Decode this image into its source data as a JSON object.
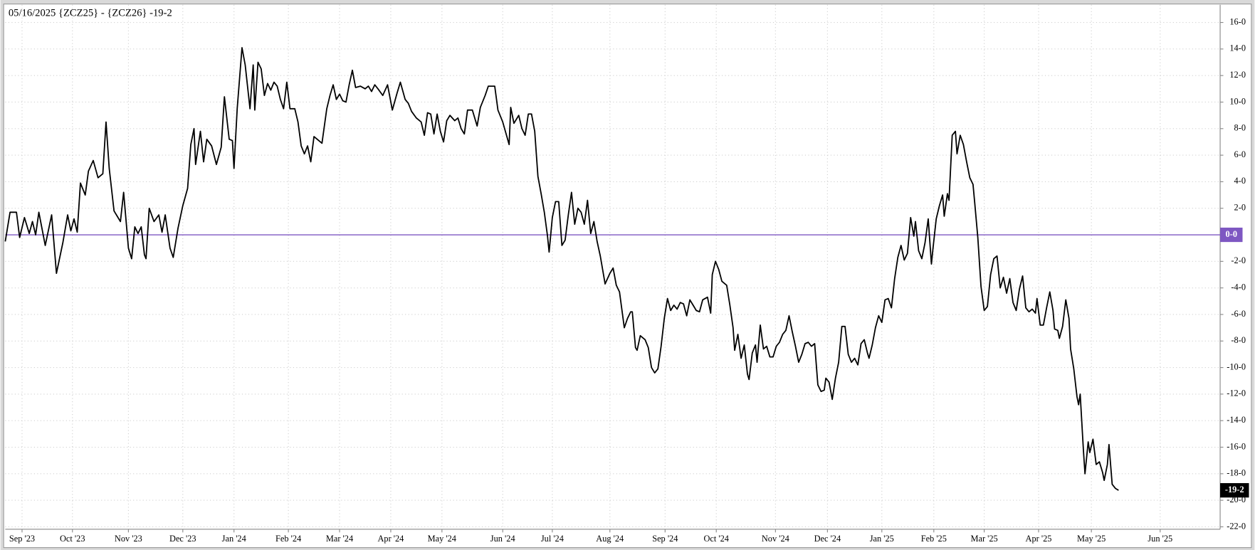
{
  "chart_data": {
    "type": "line",
    "title": "05/16/2025 {ZCZ25} - {ZCZ26} -19-2",
    "color": "#000000",
    "grid": true,
    "xlim": [
      6,
      1525
    ],
    "ylim": [
      -22.18,
      17.33
    ],
    "xticks": [
      {
        "value": 27,
        "label": "Sep '23"
      },
      {
        "value": 90,
        "label": "Oct '23"
      },
      {
        "value": 160,
        "label": "Nov '23"
      },
      {
        "value": 228,
        "label": "Dec '23"
      },
      {
        "value": 292,
        "label": "Jan '24"
      },
      {
        "value": 360,
        "label": "Feb '24"
      },
      {
        "value": 424,
        "label": "Mar '24"
      },
      {
        "value": 488,
        "label": "Apr '24"
      },
      {
        "value": 552,
        "label": "May '24"
      },
      {
        "value": 628,
        "label": "Jun '24"
      },
      {
        "value": 690,
        "label": "Jul '24"
      },
      {
        "value": 762,
        "label": "Aug '24"
      },
      {
        "value": 831,
        "label": "Sep '24"
      },
      {
        "value": 895,
        "label": "Oct '24"
      },
      {
        "value": 969,
        "label": "Nov '24"
      },
      {
        "value": 1034,
        "label": "Dec '24"
      },
      {
        "value": 1102,
        "label": "Jan '25"
      },
      {
        "value": 1167,
        "label": "Feb '25"
      },
      {
        "value": 1230,
        "label": "Mar '25"
      },
      {
        "value": 1298,
        "label": "Apr '25"
      },
      {
        "value": 1364,
        "label": "May '25"
      },
      {
        "value": 1450,
        "label": "Jun '25"
      }
    ],
    "yticks": [
      {
        "value": 16,
        "label": "16-0"
      },
      {
        "value": 14,
        "label": "14-0"
      },
      {
        "value": 12,
        "label": "12-0"
      },
      {
        "value": 10,
        "label": "10-0"
      },
      {
        "value": 8,
        "label": "8-0"
      },
      {
        "value": 6,
        "label": "6-0"
      },
      {
        "value": 4,
        "label": "4-0"
      },
      {
        "value": 2,
        "label": "2-0"
      },
      {
        "value": -2,
        "label": "-2-0"
      },
      {
        "value": -4,
        "label": "-4-0"
      },
      {
        "value": -6,
        "label": "-6-0"
      },
      {
        "value": -8,
        "label": "-8-0"
      },
      {
        "value": -10,
        "label": "-10-0"
      },
      {
        "value": -12,
        "label": "-12-0"
      },
      {
        "value": -14,
        "label": "-14-0"
      },
      {
        "value": -16,
        "label": "-16-0"
      },
      {
        "value": -18,
        "label": "-18-0"
      },
      {
        "value": -20,
        "label": "-20-0"
      },
      {
        "value": -22,
        "label": "-22-0"
      }
    ],
    "zero_line": {
      "value": 0,
      "label": "0-0",
      "color": "#7e57c2"
    },
    "last_value": {
      "value": -19.25,
      "label": "-19-2"
    },
    "x": [
      6,
      12,
      20,
      24,
      30,
      36,
      40,
      44,
      48,
      56,
      64,
      70,
      78,
      84,
      88,
      92,
      96,
      100,
      106,
      110,
      116,
      122,
      128,
      132,
      136,
      142,
      150,
      154,
      160,
      164,
      168,
      172,
      176,
      180,
      182,
      186,
      192,
      198,
      202,
      206,
      212,
      216,
      222,
      228,
      234,
      238,
      242,
      244,
      250,
      254,
      258,
      264,
      270,
      276,
      280,
      286,
      290,
      292,
      296,
      302,
      306,
      312,
      316,
      318,
      322,
      326,
      330,
      334,
      338,
      342,
      346,
      350,
      354,
      358,
      362,
      368,
      372,
      376,
      380,
      384,
      388,
      392,
      396,
      402,
      408,
      412,
      416,
      420,
      424,
      428,
      432,
      436,
      440,
      444,
      450,
      456,
      460,
      464,
      468,
      472,
      478,
      484,
      490,
      496,
      500,
      506,
      510,
      514,
      520,
      526,
      530,
      534,
      538,
      542,
      546,
      550,
      554,
      558,
      562,
      568,
      572,
      576,
      580,
      584,
      590,
      596,
      600,
      606,
      610,
      618,
      622,
      628,
      636,
      638,
      642,
      648,
      652,
      656,
      660,
      664,
      668,
      672,
      676,
      680,
      684,
      686,
      690,
      694,
      698,
      702,
      706,
      710,
      714,
      718,
      722,
      726,
      730,
      734,
      738,
      742,
      746,
      750,
      756,
      762,
      766,
      770,
      774,
      780,
      784,
      788,
      790,
      794,
      796,
      800,
      806,
      810,
      814,
      818,
      822,
      826,
      830,
      834,
      838,
      842,
      846,
      850,
      854,
      858,
      862,
      866,
      870,
      874,
      878,
      884,
      888,
      890,
      894,
      898,
      902,
      908,
      912,
      916,
      918,
      922,
      926,
      930,
      934,
      936,
      940,
      944,
      946,
      950,
      954,
      958,
      962,
      966,
      970,
      974,
      978,
      982,
      986,
      990,
      994,
      998,
      1002,
      1006,
      1010,
      1014,
      1018,
      1022,
      1026,
      1030,
      1032,
      1036,
      1040,
      1044,
      1048,
      1052,
      1056,
      1060,
      1064,
      1068,
      1072,
      1076,
      1080,
      1084,
      1086,
      1090,
      1094,
      1098,
      1102,
      1106,
      1110,
      1114,
      1118,
      1122,
      1126,
      1130,
      1134,
      1138,
      1142,
      1144,
      1148,
      1152,
      1156,
      1160,
      1164,
      1166,
      1170,
      1174,
      1178,
      1180,
      1184,
      1186,
      1190,
      1194,
      1196,
      1200,
      1204,
      1208,
      1212,
      1216,
      1218,
      1222,
      1226,
      1230,
      1234,
      1238,
      1242,
      1246,
      1250,
      1254,
      1258,
      1262,
      1266,
      1270,
      1274,
      1278,
      1282,
      1286,
      1290,
      1294,
      1296,
      1300,
      1304,
      1308,
      1312,
      1316,
      1318,
      1322,
      1324,
      1328,
      1332,
      1336,
      1338,
      1342,
      1346,
      1348,
      1350,
      1354,
      1356,
      1360,
      1362,
      1366,
      1370,
      1374,
      1378,
      1380,
      1384,
      1386,
      1390,
      1394,
      1398
    ],
    "values": [
      -0.5,
      1.7,
      1.7,
      -0.2,
      1.3,
      0.1,
      1.0,
      0.0,
      1.7,
      -0.8,
      1.5,
      -2.9,
      -0.6,
      1.5,
      0.3,
      1.2,
      0.2,
      3.9,
      3.0,
      4.8,
      5.6,
      4.3,
      4.6,
      8.5,
      5.0,
      1.8,
      1.0,
      3.2,
      -1.0,
      -1.8,
      0.6,
      0.1,
      0.6,
      -1.5,
      -1.8,
      2.0,
      1.0,
      1.5,
      0.2,
      1.5,
      -1.0,
      -1.7,
      0.5,
      2.2,
      3.5,
      6.8,
      8.0,
      5.3,
      7.8,
      5.5,
      7.2,
      6.7,
      5.3,
      6.6,
      10.4,
      7.2,
      7.1,
      5.0,
      9.5,
      14.1,
      12.8,
      9.5,
      12.8,
      9.4,
      13.0,
      12.5,
      10.5,
      11.4,
      10.9,
      11.5,
      11.2,
      10.2,
      9.5,
      11.5,
      9.5,
      9.5,
      8.5,
      6.7,
      6.1,
      6.7,
      5.5,
      7.4,
      7.2,
      6.9,
      9.5,
      10.5,
      11.3,
      10.2,
      10.6,
      10.1,
      10.0,
      11.3,
      12.4,
      11.1,
      11.2,
      11.0,
      11.2,
      10.8,
      11.3,
      11.0,
      10.5,
      11.3,
      9.4,
      10.7,
      11.5,
      10.2,
      9.9,
      9.3,
      8.8,
      8.5,
      7.5,
      9.2,
      9.1,
      7.6,
      9.1,
      7.8,
      7.0,
      8.6,
      9.0,
      8.6,
      8.8,
      8.0,
      7.6,
      9.4,
      9.4,
      8.2,
      9.6,
      10.5,
      11.2,
      11.2,
      9.4,
      8.5,
      6.8,
      9.6,
      8.4,
      9.0,
      8.0,
      7.5,
      9.1,
      9.1,
      7.8,
      4.4,
      3.1,
      1.7,
      -0.1,
      -1.3,
      1.3,
      2.5,
      2.5,
      -0.8,
      -0.4,
      1.5,
      3.2,
      0.8,
      2.0,
      1.7,
      0.8,
      2.6,
      0.1,
      1.0,
      -0.5,
      -1.6,
      -3.7,
      -2.9,
      -2.5,
      -3.8,
      -4.3,
      -7.0,
      -6.3,
      -5.8,
      -5.8,
      -8.5,
      -8.7,
      -7.6,
      -7.9,
      -8.5,
      -10.0,
      -10.4,
      -10.1,
      -8.4,
      -6.3,
      -4.8,
      -5.7,
      -5.3,
      -5.6,
      -5.1,
      -5.2,
      -6.1,
      -4.9,
      -5.3,
      -5.7,
      -5.8,
      -4.9,
      -4.7,
      -5.9,
      -3.0,
      -2.0,
      -2.6,
      -3.5,
      -3.8,
      -5.3,
      -7.0,
      -8.7,
      -7.5,
      -9.3,
      -8.3,
      -10.5,
      -10.9,
      -8.9,
      -8.3,
      -9.6,
      -6.8,
      -8.6,
      -8.4,
      -9.2,
      -9.2,
      -8.4,
      -8.1,
      -7.5,
      -7.2,
      -6.1,
      -7.3,
      -8.4,
      -9.6,
      -9.0,
      -8.2,
      -8.1,
      -8.4,
      -8.2,
      -11.3,
      -11.8,
      -11.7,
      -10.8,
      -11.1,
      -12.4,
      -10.8,
      -9.6,
      -6.9,
      -6.9,
      -9.0,
      -9.6,
      -9.3,
      -9.8,
      -8.2,
      -7.9,
      -8.9,
      -9.3,
      -8.3,
      -7.0,
      -6.1,
      -6.6,
      -4.9,
      -4.8,
      -5.5,
      -3.3,
      -1.7,
      -0.8,
      -1.9,
      -1.4,
      1.3,
      -0.1,
      1.0,
      -1.2,
      -1.8,
      -0.6,
      1.2,
      -2.2,
      -1.0,
      1.2,
      2.2,
      3.0,
      1.4,
      3.1,
      2.6,
      7.5,
      7.8,
      6.1,
      7.5,
      6.8,
      5.5,
      4.3,
      3.8,
      2.5,
      -0.2,
      -3.9,
      -5.7,
      -5.4,
      -3.0,
      -1.8,
      -1.6,
      -4.0,
      -3.2,
      -4.4,
      -3.3,
      -5.1,
      -5.7,
      -4.1,
      -3.1,
      -5.5,
      -5.8,
      -5.6,
      -5.9,
      -4.8,
      -6.8,
      -6.8,
      -5.5,
      -4.3,
      -5.7,
      -7.1,
      -7.2,
      -7.8,
      -6.9,
      -4.9,
      -6.3,
      -8.6,
      -10.1,
      -12.2,
      -12.8,
      -12.0,
      -16.2,
      -18.0,
      -15.6,
      -16.4,
      -15.4,
      -17.3,
      -17.1,
      -17.9,
      -18.5,
      -17.3,
      -15.8,
      -18.8,
      -19.1,
      -19.25
    ]
  }
}
